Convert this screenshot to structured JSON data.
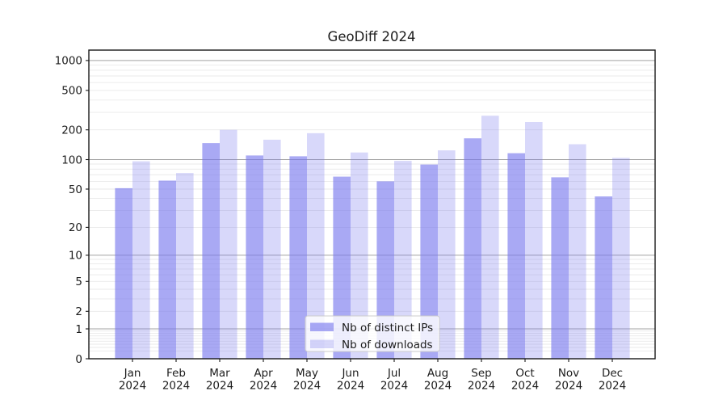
{
  "figure": {
    "title": "GeoDiff 2024",
    "background_color": "#ffffff"
  },
  "chart_data": {
    "type": "bar",
    "title": "GeoDiff 2024",
    "categories": [
      "Jan 2024",
      "Feb 2024",
      "Mar 2024",
      "Apr 2024",
      "May 2024",
      "Jun 2024",
      "Jul 2024",
      "Aug 2024",
      "Sep 2024",
      "Oct 2024",
      "Nov 2024",
      "Dec 2024"
    ],
    "x_tick_month_labels": [
      "Jan",
      "Feb",
      "Mar",
      "Apr",
      "May",
      "Jun",
      "Jul",
      "Aug",
      "Sep",
      "Oct",
      "Nov",
      "Dec"
    ],
    "x_tick_year_label": "2024",
    "series": [
      {
        "name": "Nb of distinct IPs",
        "color": "rgba(119,119,238,0.63)",
        "values": [
          51,
          61,
          147,
          110,
          108,
          67,
          60,
          89,
          164,
          116,
          66,
          42
        ]
      },
      {
        "name": "Nb of downloads",
        "color": "rgba(119,119,238,0.29)",
        "values": [
          96,
          73,
          200,
          159,
          185,
          118,
          97,
          124,
          278,
          240,
          143,
          104
        ]
      }
    ],
    "y_axis": {
      "scale": "log1p",
      "tick_values": [
        0,
        1,
        2,
        5,
        10,
        20,
        50,
        100,
        200,
        500,
        1000
      ],
      "tick_labels": [
        "0",
        "1",
        "2",
        "5",
        "10",
        "20",
        "50",
        "100",
        "200",
        "500",
        "1000"
      ],
      "ylim": [
        0,
        1280
      ]
    },
    "xlabel": "",
    "ylabel": "",
    "legend": {
      "position": "lower center",
      "entries": [
        "Nb of distinct IPs",
        "Nb of downloads"
      ]
    },
    "grid": {
      "orientation": "horizontal",
      "major_color": "#a3a3a3",
      "minor_color": "#e9e9e9"
    },
    "accent_color": "#7777ee"
  }
}
